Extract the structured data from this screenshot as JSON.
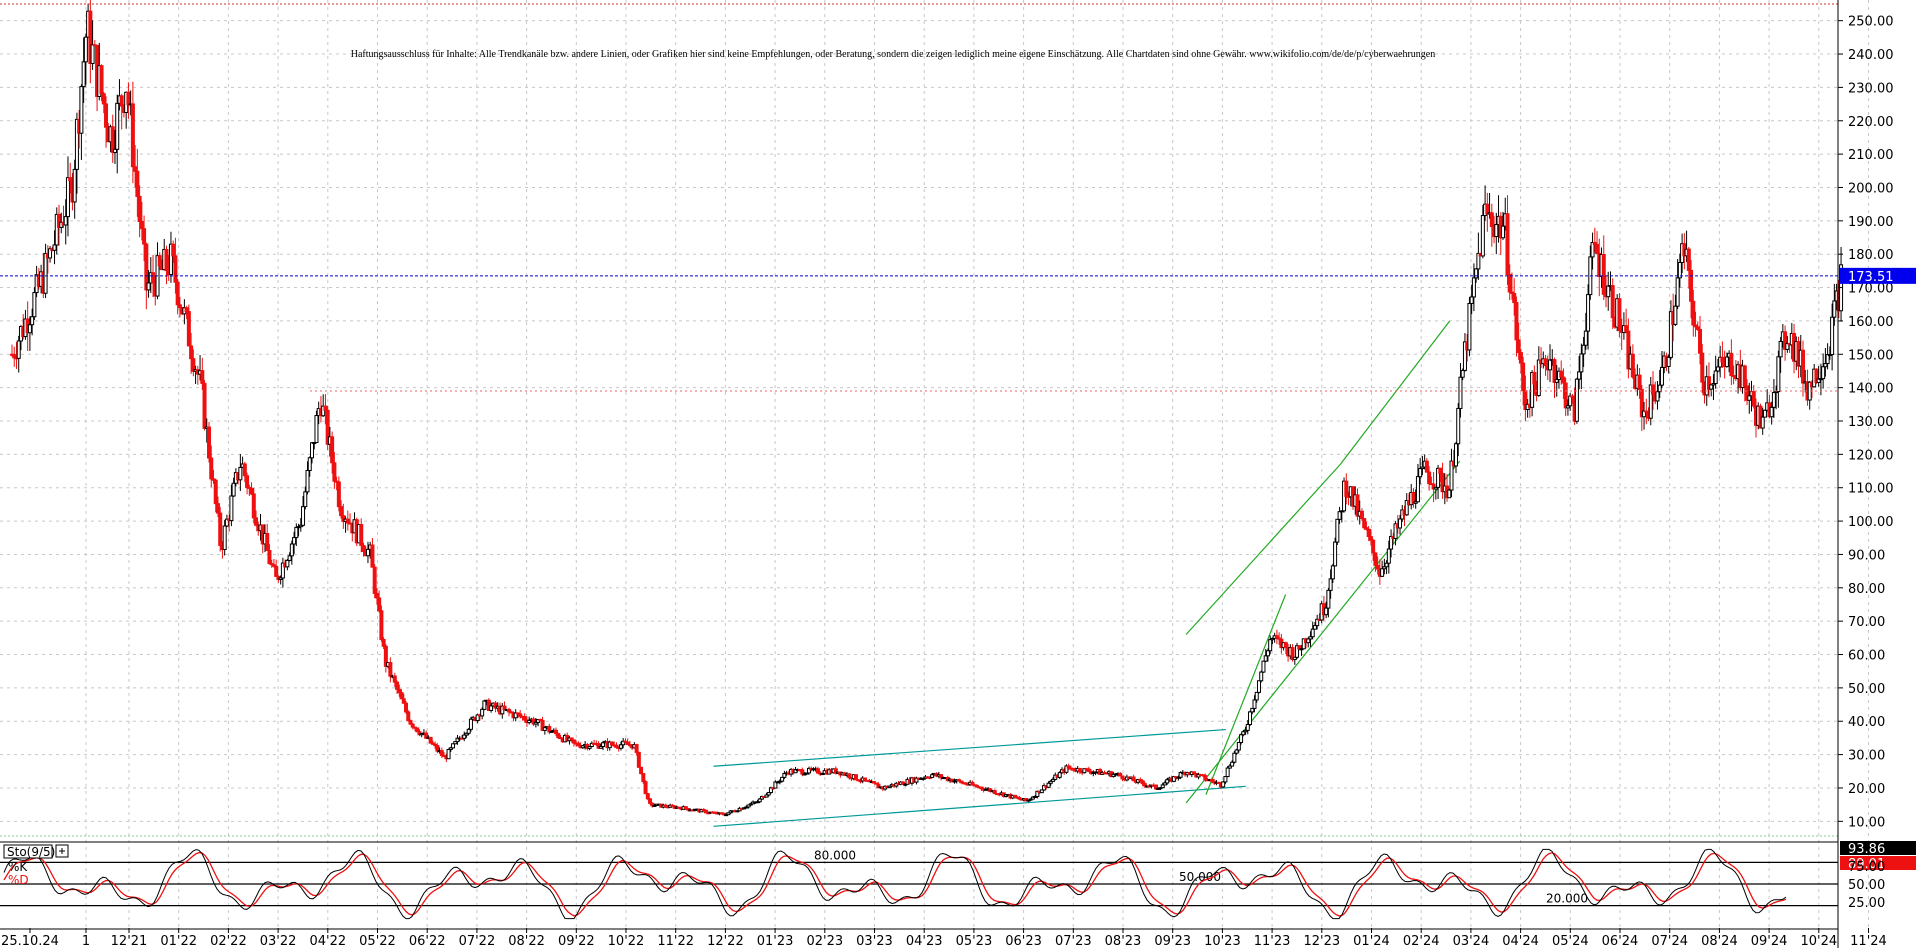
{
  "chart_data": {
    "type": "candlestick",
    "disclaimer": "Haftungsausschluss für Inhalte: Alle Trendkanäle bzw. andere Linien, oder Grafiken hier sind keine Empfehlungen, oder Beratung, sondern die zeigen lediglich meine eigene Einschätzung. Alle Chartdaten sind ohne Gewähr. www.wikifolio.com/de/de/p/cyberwaehrungen",
    "ylim": [
      5,
      255
    ],
    "y_ticks": [
      10,
      20,
      30,
      40,
      50,
      60,
      70,
      80,
      90,
      100,
      110,
      120,
      130,
      140,
      150,
      160,
      170,
      180,
      190,
      200,
      210,
      220,
      230,
      240,
      250
    ],
    "y_tick_labels": [
      "10.00",
      "20.00",
      "30.00",
      "40.00",
      "50.00",
      "60.00",
      "70.00",
      "80.00",
      "90.00",
      "100.00",
      "110.00",
      "120.00",
      "130.00",
      "140.00",
      "150.00",
      "160.00",
      "170.00",
      "180.00",
      "190.00",
      "200.00",
      "210.00",
      "220.00",
      "230.00",
      "240.00",
      "250.00"
    ],
    "x_labels": [
      "25.10.24",
      "1",
      "12'21",
      "01'22",
      "02'22",
      "03'22",
      "04'22",
      "05'22",
      "06'22",
      "07'22",
      "08'22",
      "09'22",
      "10'22",
      "11'22",
      "12'22",
      "01'23",
      "02'23",
      "03'23",
      "04'23",
      "05'23",
      "06'23",
      "07'23",
      "08'23",
      "09'23",
      "10'23",
      "11'23",
      "12'23",
      "01'24",
      "02'24",
      "03'24",
      "04'24",
      "05'24",
      "06'24",
      "07'24",
      "08'24",
      "09'24",
      "10'24",
      "11'24"
    ],
    "current_price": 173.51,
    "current_price_label": "173.51",
    "reference_level": 139,
    "key_points": [
      {
        "month": 0,
        "price": 150
      },
      {
        "month": 0.6,
        "price": 172
      },
      {
        "month": 1.2,
        "price": 200
      },
      {
        "month": 1.5,
        "price": 248
      },
      {
        "month": 2.0,
        "price": 215
      },
      {
        "month": 2.3,
        "price": 232
      },
      {
        "month": 2.7,
        "price": 170
      },
      {
        "month": 3.2,
        "price": 178
      },
      {
        "month": 3.8,
        "price": 140
      },
      {
        "month": 4.2,
        "price": 92
      },
      {
        "month": 4.6,
        "price": 118
      },
      {
        "month": 5.3,
        "price": 82
      },
      {
        "month": 5.8,
        "price": 100
      },
      {
        "month": 6.2,
        "price": 137
      },
      {
        "month": 6.6,
        "price": 105
      },
      {
        "month": 7.2,
        "price": 90
      },
      {
        "month": 7.5,
        "price": 58
      },
      {
        "month": 8.0,
        "price": 40
      },
      {
        "month": 8.7,
        "price": 29
      },
      {
        "month": 9.5,
        "price": 45
      },
      {
        "month": 10.5,
        "price": 40
      },
      {
        "month": 11.3,
        "price": 33
      },
      {
        "month": 12.5,
        "price": 33
      },
      {
        "month": 12.8,
        "price": 15
      },
      {
        "month": 13.5,
        "price": 14
      },
      {
        "month": 14.3,
        "price": 12
      },
      {
        "month": 15.0,
        "price": 16
      },
      {
        "month": 15.6,
        "price": 25
      },
      {
        "month": 16.6,
        "price": 25
      },
      {
        "month": 17.5,
        "price": 20
      },
      {
        "month": 18.5,
        "price": 24
      },
      {
        "month": 19.5,
        "price": 20
      },
      {
        "month": 20.4,
        "price": 16
      },
      {
        "month": 21.2,
        "price": 26
      },
      {
        "month": 22.2,
        "price": 24
      },
      {
        "month": 23.0,
        "price": 20
      },
      {
        "month": 23.6,
        "price": 25
      },
      {
        "month": 24.3,
        "price": 21
      },
      {
        "month": 24.8,
        "price": 38
      },
      {
        "month": 25.3,
        "price": 65
      },
      {
        "month": 25.8,
        "price": 60
      },
      {
        "month": 26.4,
        "price": 75
      },
      {
        "month": 26.8,
        "price": 112
      },
      {
        "month": 27.5,
        "price": 85
      },
      {
        "month": 28.0,
        "price": 103
      },
      {
        "month": 28.4,
        "price": 115
      },
      {
        "month": 28.9,
        "price": 110
      },
      {
        "month": 29.2,
        "price": 150
      },
      {
        "month": 29.6,
        "price": 192
      },
      {
        "month": 30.0,
        "price": 188
      },
      {
        "month": 30.4,
        "price": 135
      },
      {
        "month": 30.9,
        "price": 150
      },
      {
        "month": 31.4,
        "price": 132
      },
      {
        "month": 31.8,
        "price": 183
      },
      {
        "month": 32.3,
        "price": 160
      },
      {
        "month": 32.8,
        "price": 132
      },
      {
        "month": 33.2,
        "price": 145
      },
      {
        "month": 33.6,
        "price": 182
      },
      {
        "month": 34.0,
        "price": 142
      },
      {
        "month": 34.6,
        "price": 148
      },
      {
        "month": 35.2,
        "price": 128
      },
      {
        "month": 35.7,
        "price": 158
      },
      {
        "month": 36.1,
        "price": 140
      },
      {
        "month": 36.5,
        "price": 152
      },
      {
        "month": 36.8,
        "price": 175
      }
    ],
    "trendlines": [
      {
        "color": "#009999",
        "from": [
          14.1,
          26.5
        ],
        "to": [
          24.4,
          37.5
        ]
      },
      {
        "color": "#009999",
        "from": [
          14.1,
          8.5
        ],
        "to": [
          24.8,
          20.5
        ]
      },
      {
        "color": "#22aa22",
        "from": [
          23.6,
          66
        ],
        "to": [
          26.7,
          117
        ]
      },
      {
        "color": "#22aa22",
        "from": [
          23.6,
          15.5
        ],
        "to": [
          29.1,
          118
        ]
      },
      {
        "color": "#22aa22",
        "from": [
          26.7,
          117
        ],
        "to": [
          28.9,
          160
        ]
      },
      {
        "color": "#22aa22",
        "from": [
          24.0,
          18
        ],
        "to": [
          25.6,
          78
        ]
      }
    ],
    "stochastic": {
      "label": "Sto(9/5)",
      "k_label": "%K",
      "d_label": "%D",
      "k_value": "93.86",
      "d_value": "89.01",
      "levels": [
        {
          "value": 80,
          "text": "80.000"
        },
        {
          "value": 50,
          "text": "50.000"
        },
        {
          "value": 20,
          "text": "20.000"
        }
      ],
      "axis_labels": [
        "25.00",
        "50.00",
        "75.00"
      ]
    }
  }
}
